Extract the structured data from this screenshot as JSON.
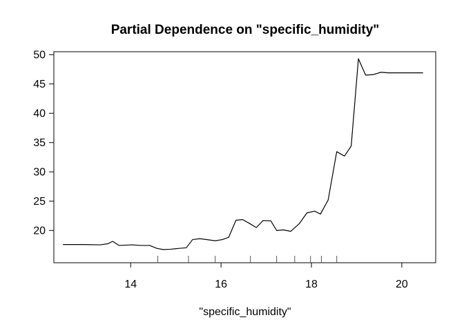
{
  "chart_data": {
    "type": "line",
    "title": "Partial Dependence on \"specific_humidity\"",
    "xlabel": "\"specific_humidity\"",
    "ylabel": "",
    "xlim": [
      12.3,
      20.75
    ],
    "ylim": [
      14.5,
      50.5
    ],
    "xticks": [
      14,
      16,
      18,
      20
    ],
    "yticks": [
      20,
      25,
      30,
      35,
      40,
      45,
      50
    ],
    "grid": false,
    "legend": "none",
    "line_color": "#000000",
    "series": [
      {
        "x": [
          12.5,
          12.97,
          13.33,
          13.5,
          13.6,
          13.74,
          14.03,
          14.23,
          14.42,
          14.58,
          14.72,
          14.88,
          15.07,
          15.23,
          15.37,
          15.53,
          15.73,
          15.87,
          16.03,
          16.17,
          16.33,
          16.48,
          16.63,
          16.78,
          16.93,
          17.1,
          17.23,
          17.38,
          17.54,
          17.73,
          17.9,
          18.07,
          18.2,
          18.37,
          18.56,
          18.73,
          18.88,
          19.04,
          19.2,
          19.37,
          19.54,
          19.7,
          19.86,
          20.04,
          20.2,
          20.47
        ],
        "y": [
          17.6,
          17.6,
          17.55,
          17.75,
          18.15,
          17.45,
          17.55,
          17.45,
          17.45,
          16.95,
          16.75,
          16.8,
          16.95,
          17.05,
          18.45,
          18.6,
          18.4,
          18.25,
          18.45,
          18.85,
          21.75,
          21.85,
          21.2,
          20.5,
          21.7,
          21.65,
          20.0,
          20.1,
          19.85,
          21.15,
          23.0,
          23.3,
          22.8,
          25.2,
          33.45,
          32.7,
          34.4,
          49.3,
          46.5,
          46.6,
          47.0,
          46.9,
          46.9,
          46.9,
          46.9,
          46.9
        ]
      }
    ],
    "rug": [
      14.6,
      15.28,
      15.87,
      16.65,
      17.23,
      17.63,
      17.98,
      18.22,
      18.56
    ]
  }
}
